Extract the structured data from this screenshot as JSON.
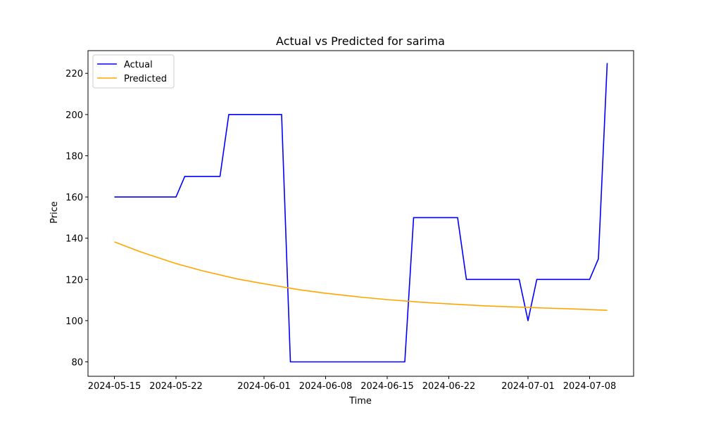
{
  "chart_data": {
    "type": "line",
    "title": "Actual vs Predicted for sarima",
    "xlabel": "Time",
    "ylabel": "Price",
    "x_ticks": [
      "2024-05-15",
      "2024-05-22",
      "2024-06-01",
      "2024-06-08",
      "2024-06-15",
      "2024-06-22",
      "2024-07-01",
      "2024-07-08"
    ],
    "y_ticks": [
      80,
      100,
      120,
      140,
      160,
      180,
      200,
      220
    ],
    "xlim": [
      "2024-05-12",
      "2024-07-13"
    ],
    "ylim": [
      73,
      231
    ],
    "grid": false,
    "legend": {
      "position": "top-left"
    },
    "series": [
      {
        "name": "Actual",
        "color": "#0000ff",
        "points": [
          [
            "2024-05-15",
            160
          ],
          [
            "2024-05-22",
            160
          ],
          [
            "2024-05-23",
            170
          ],
          [
            "2024-05-27",
            170
          ],
          [
            "2024-05-28",
            200
          ],
          [
            "2024-06-03",
            200
          ],
          [
            "2024-06-04",
            80
          ],
          [
            "2024-06-17",
            80
          ],
          [
            "2024-06-18",
            150
          ],
          [
            "2024-06-23",
            150
          ],
          [
            "2024-06-24",
            120
          ],
          [
            "2024-06-30",
            120
          ],
          [
            "2024-07-01",
            100
          ],
          [
            "2024-07-02",
            120
          ],
          [
            "2024-07-08",
            120
          ],
          [
            "2024-07-09",
            130
          ],
          [
            "2024-07-10",
            225
          ]
        ]
      },
      {
        "name": "Predicted",
        "color": "#ffa500",
        "points": [
          [
            "2024-05-15",
            138.2
          ],
          [
            "2024-05-18",
            133.3
          ],
          [
            "2024-05-22",
            127.7
          ],
          [
            "2024-05-25",
            124.2
          ],
          [
            "2024-05-29",
            120.2
          ],
          [
            "2024-06-01",
            117.9
          ],
          [
            "2024-06-05",
            115.0
          ],
          [
            "2024-06-08",
            113.3
          ],
          [
            "2024-06-12",
            111.4
          ],
          [
            "2024-06-15",
            110.2
          ],
          [
            "2024-06-19",
            108.9
          ],
          [
            "2024-06-22",
            108.1
          ],
          [
            "2024-06-26",
            107.2
          ],
          [
            "2024-06-29",
            106.7
          ],
          [
            "2024-07-03",
            106.1
          ],
          [
            "2024-07-06",
            105.7
          ],
          [
            "2024-07-10",
            105.0
          ]
        ]
      }
    ]
  }
}
